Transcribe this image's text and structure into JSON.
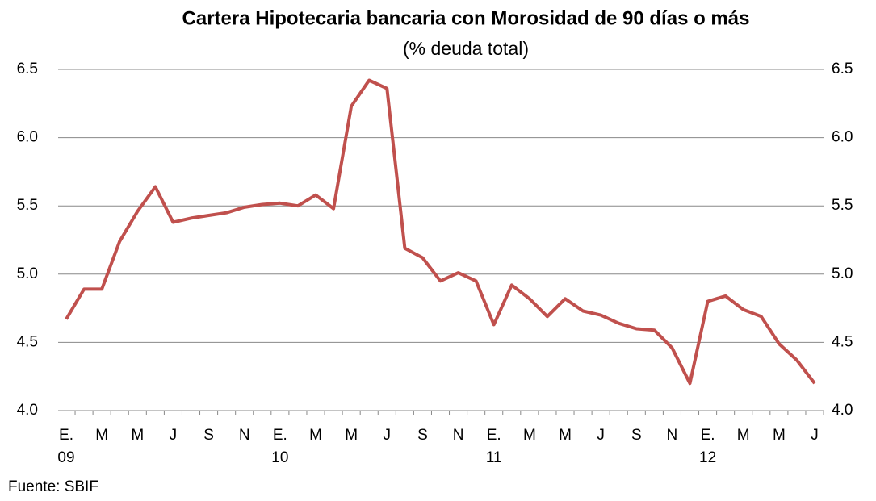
{
  "chart_data": {
    "type": "line",
    "title": "Cartera Hipotecaria bancaria con Morosidad de 90 días o más",
    "subtitle": "(% deuda total)",
    "source": "Fuente: SBIF",
    "categories": [
      "E.",
      null,
      "M",
      null,
      "M",
      null,
      "J",
      null,
      "S",
      null,
      "N",
      null,
      "E.",
      null,
      "M",
      null,
      "M",
      null,
      "J",
      null,
      "S",
      null,
      "N",
      null,
      "E.",
      null,
      "M",
      null,
      "M",
      null,
      "J",
      null,
      "S",
      null,
      "N",
      null,
      "E.",
      null,
      "M",
      null,
      "M",
      null,
      "J"
    ],
    "year_labels": [
      "09",
      null,
      null,
      null,
      null,
      null,
      null,
      null,
      null,
      null,
      null,
      null,
      "10",
      null,
      null,
      null,
      null,
      null,
      null,
      null,
      null,
      null,
      null,
      null,
      "11",
      null,
      null,
      null,
      null,
      null,
      null,
      null,
      null,
      null,
      null,
      null,
      "12",
      null,
      null,
      null,
      null,
      null,
      null
    ],
    "series": [
      {
        "color": "#c0504d",
        "values": [
          4.67,
          4.89,
          4.89,
          5.24,
          5.46,
          5.64,
          5.38,
          5.41,
          5.43,
          5.45,
          5.49,
          5.51,
          5.52,
          5.5,
          5.58,
          5.48,
          6.23,
          6.42,
          6.36,
          5.19,
          5.12,
          4.95,
          5.01,
          4.95,
          4.63,
          4.92,
          4.82,
          4.69,
          4.82,
          4.73,
          4.7,
          4.64,
          4.6,
          4.59,
          4.46,
          4.2,
          4.8,
          4.84,
          4.74,
          4.69,
          4.49,
          4.37,
          4.2
        ]
      }
    ],
    "ylim": [
      4,
      6.5
    ],
    "yticks": [
      {
        "value": 4,
        "label": "4.0"
      },
      4.5,
      {
        "value": 5,
        "label": "5.0"
      },
      5.5,
      {
        "value": 6,
        "label": "6.0"
      },
      6.5
    ],
    "y2lim": [
      4,
      6.5
    ],
    "y2ticks": [
      {
        "value": 4,
        "label": "4.0"
      },
      4.5,
      {
        "value": 5,
        "label": "5.0"
      },
      5.5,
      {
        "value": 6,
        "label": "6.0"
      },
      6.5
    ],
    "grid": true
  }
}
